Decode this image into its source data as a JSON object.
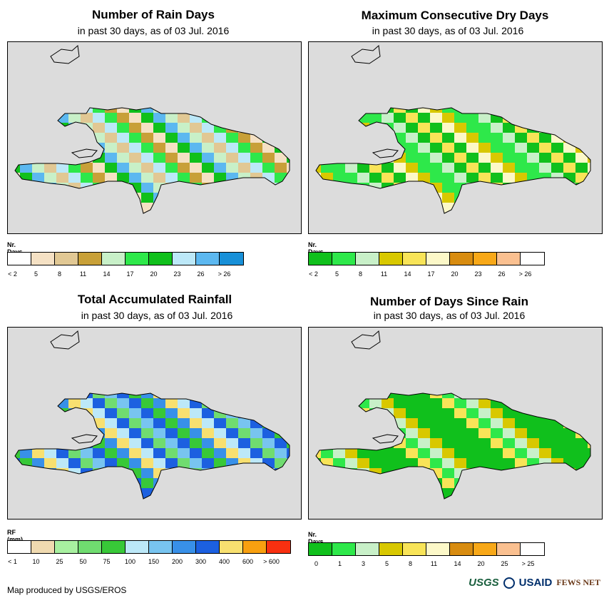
{
  "panels": [
    {
      "title": "Number of Rain Days",
      "subtitle": "in past 30 days, as of 03 Jul. 2016",
      "legend_label": "Nr. Days",
      "legend_colors": [
        "#ffffff",
        "#f5e1c4",
        "#e1c894",
        "#c8a038",
        "#c8f0c8",
        "#2ee84a",
        "#10c01c",
        "#bce8f8",
        "#5cb8f0",
        "#1890d8"
      ],
      "legend_ticks": [
        "< 2",
        "5",
        "8",
        "11",
        "14",
        "17",
        "20",
        "23",
        "26",
        "> 26"
      ]
    },
    {
      "title": "Maximum Consecutive Dry Days",
      "subtitle": "in past 30 days, as of 03 Jul. 2016",
      "legend_label": "Nr. Days",
      "legend_colors": [
        "#10c01c",
        "#2ee84a",
        "#c8f0c8",
        "#d8c800",
        "#f8e458",
        "#fcf8c8",
        "#d88c10",
        "#f8a818",
        "#fac090",
        "#ffffff"
      ],
      "legend_ticks": [
        "< 2",
        "5",
        "8",
        "11",
        "14",
        "17",
        "20",
        "23",
        "26",
        "> 26"
      ]
    },
    {
      "title": "Total Accumulated Rainfall",
      "subtitle": "in past 30 days, as of 03 Jul. 2016",
      "legend_label": "RF (mm)",
      "legend_colors": [
        "#ffffff",
        "#f0dab0",
        "#a8f0a0",
        "#70dc70",
        "#38c838",
        "#bce8f8",
        "#78c4f0",
        "#3890e8",
        "#1c60e0",
        "#f8e070",
        "#f8a010",
        "#f83010"
      ],
      "legend_ticks": [
        "< 1",
        "10",
        "25",
        "50",
        "75",
        "100",
        "150",
        "200",
        "300",
        "400",
        "600",
        "> 600"
      ]
    },
    {
      "title": "Number of Days Since Rain",
      "subtitle": "in past 30 days, as of 03 Jul. 2016",
      "legend_label": "Nr. Days",
      "legend_colors": [
        "#10c01c",
        "#2ee84a",
        "#c8f0c8",
        "#d8c800",
        "#f8e458",
        "#fcf8c8",
        "#d88c10",
        "#f8a818",
        "#fac090",
        "#ffffff"
      ],
      "legend_ticks": [
        "0",
        "1",
        "3",
        "5",
        "8",
        "11",
        "14",
        "20",
        "25",
        "> 25"
      ]
    }
  ],
  "footer": "Map produced by USGS/EROS",
  "logos": {
    "usgs": "USGS",
    "usaid": "USAID",
    "fews": "FEWS NET"
  }
}
